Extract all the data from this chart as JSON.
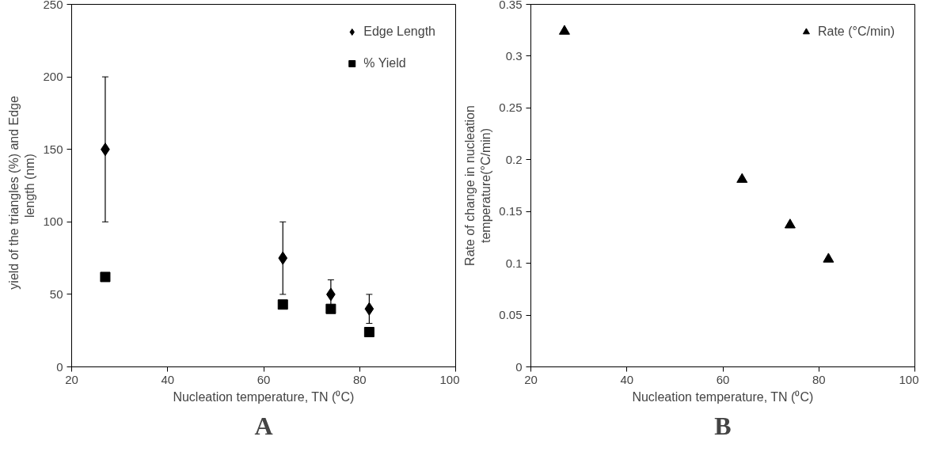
{
  "chart_data": [
    {
      "type": "scatter",
      "xlabel": "Nucleation temperature, TN (⁰C)",
      "ylabel": "yield of the triangles  (%)    and Edge\nlength (nm)",
      "x": [
        27,
        64,
        74,
        82
      ],
      "xlim": [
        20,
        100
      ],
      "xticks": [
        20,
        40,
        60,
        80,
        100
      ],
      "ylim": [
        0,
        250
      ],
      "yticks": [
        0,
        50,
        100,
        150,
        200,
        250
      ],
      "legend": "top right",
      "grid": false,
      "annotations": [
        "A"
      ],
      "series": [
        {
          "name": "Edge Length",
          "color": "#000000",
          "marker": "diamond",
          "values": [
            150,
            75,
            50,
            40
          ],
          "errors": [
            50,
            25,
            10,
            10
          ]
        },
        {
          "name": "% Yield",
          "color": "#000000",
          "marker": "square",
          "values": [
            62,
            43,
            40,
            24
          ]
        }
      ]
    },
    {
      "type": "scatter",
      "xlabel": "Nucleation temperature, TN (⁰C)",
      "ylabel": "Rate of change in nucleation\ntemperature(°C/min)",
      "x": [
        27,
        64,
        74,
        82
      ],
      "xlim": [
        20,
        100
      ],
      "xticks": [
        20,
        40,
        60,
        80,
        100
      ],
      "ylim": [
        0,
        0.35
      ],
      "yticks": [
        0,
        0.05,
        0.1,
        0.15,
        0.2,
        0.25,
        0.3,
        0.35
      ],
      "legend": "top right",
      "grid": false,
      "annotations": [
        "B"
      ],
      "series": [
        {
          "name": "Rate (°C/min)",
          "color": "#000000",
          "marker": "triangle",
          "values": [
            0.324,
            0.181,
            0.137,
            0.104
          ]
        }
      ]
    }
  ]
}
